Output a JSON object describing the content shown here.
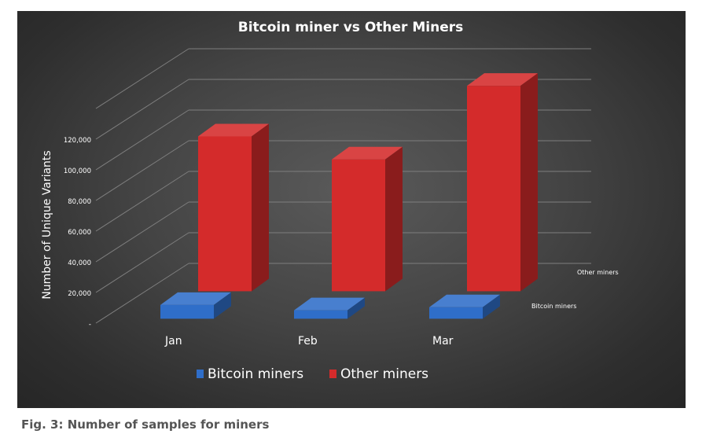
{
  "chart_data": {
    "type": "bar",
    "subtype": "3d-column",
    "title": "Bitcoin miner vs Other Miners",
    "xlabel": "",
    "ylabel": "Number of Unique Variants",
    "categories": [
      "Jan",
      "Feb",
      "Mar"
    ],
    "series": [
      {
        "name": "Bitcoin miners",
        "values": [
          9000,
          5500,
          7500
        ],
        "color": "#2f6ec9"
      },
      {
        "name": "Other miners",
        "values": [
          101000,
          86000,
          134000
        ],
        "color": "#d42b2b"
      }
    ],
    "y_ticks": [
      "-",
      "20,000",
      "40,000",
      "60,000",
      "80,000",
      "100,000",
      "120,000"
    ],
    "y_tick_values": [
      0,
      20000,
      40000,
      60000,
      80000,
      100000,
      120000
    ],
    "ylim": [
      0,
      140000
    ],
    "depth_labels": [
      "Bitcoin miners",
      "Other miners"
    ],
    "grid": true,
    "legend_position": "bottom",
    "background": "#3a3a3a"
  },
  "caption": "Fig. 3: Number of samples for miners"
}
